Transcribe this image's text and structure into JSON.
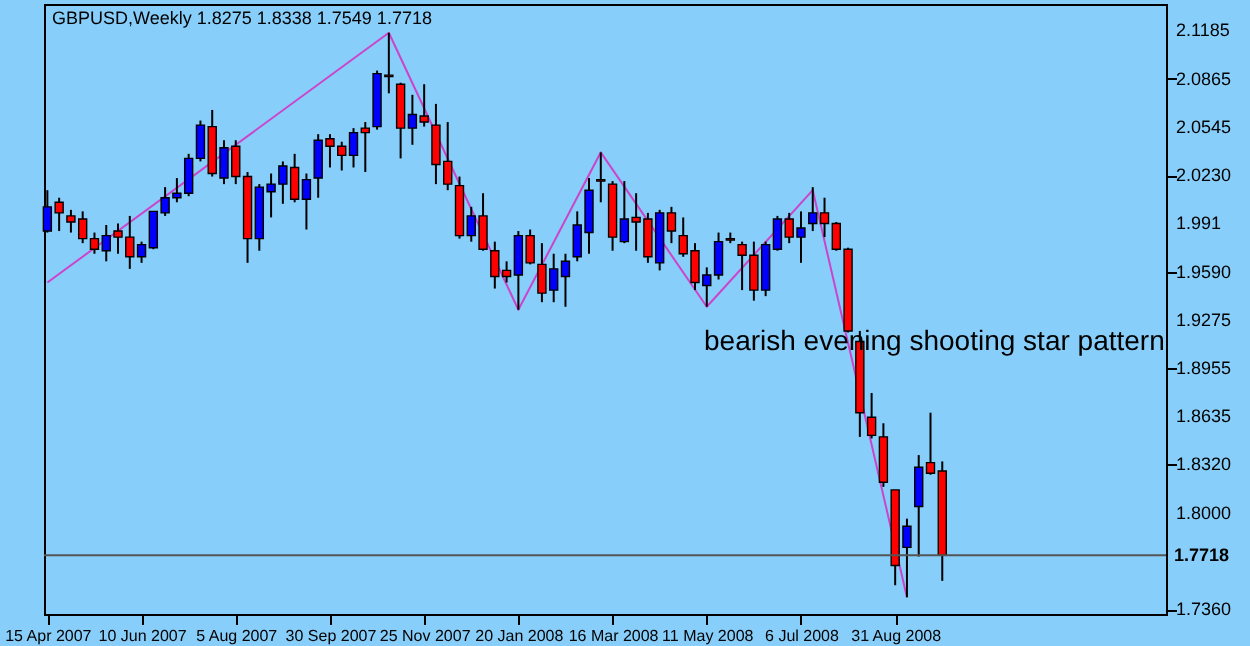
{
  "chart_data": {
    "type": "candlestick",
    "title": "GBPUSD,Weekly  1.8275 1.8338 1.7549 1.7718",
    "annotations": [
      "bearish evening shooting star pattern"
    ],
    "x": [
      "2007-04-15",
      "2007-04-22",
      "2007-04-29",
      "2007-05-06",
      "2007-05-13",
      "2007-05-20",
      "2007-05-27",
      "2007-06-03",
      "2007-06-10",
      "2007-06-17",
      "2007-06-24",
      "2007-07-01",
      "2007-07-08",
      "2007-07-15",
      "2007-07-22",
      "2007-07-29",
      "2007-08-05",
      "2007-08-12",
      "2007-08-19",
      "2007-08-26",
      "2007-09-02",
      "2007-09-09",
      "2007-09-16",
      "2007-09-23",
      "2007-09-30",
      "2007-10-07",
      "2007-10-14",
      "2007-10-21",
      "2007-10-28",
      "2007-11-04",
      "2007-11-11",
      "2007-11-18",
      "2007-11-25",
      "2007-12-02",
      "2007-12-09",
      "2007-12-16",
      "2007-12-23",
      "2007-12-30",
      "2008-01-06",
      "2008-01-13",
      "2008-01-20",
      "2008-01-27",
      "2008-02-03",
      "2008-02-10",
      "2008-02-17",
      "2008-02-24",
      "2008-03-02",
      "2008-03-09",
      "2008-03-16",
      "2008-03-23",
      "2008-03-30",
      "2008-04-06",
      "2008-04-13",
      "2008-04-20",
      "2008-04-27",
      "2008-05-04",
      "2008-05-11",
      "2008-05-18",
      "2008-05-25",
      "2008-06-01",
      "2008-06-08",
      "2008-06-15",
      "2008-06-22",
      "2008-06-29",
      "2008-07-06",
      "2008-07-13",
      "2008-07-20",
      "2008-07-27",
      "2008-08-03",
      "2008-08-10",
      "2008-08-17",
      "2008-08-24",
      "2008-08-31",
      "2008-09-07",
      "2008-09-14",
      "2008-09-21",
      "2008-09-28"
    ],
    "ohlc": [
      [
        1.986,
        2.013,
        1.985,
        2.002
      ],
      [
        2.005,
        2.008,
        1.986,
        1.998
      ],
      [
        1.996,
        2.0,
        1.985,
        1.992
      ],
      [
        1.994,
        1.999,
        1.978,
        1.981
      ],
      [
        1.981,
        1.985,
        1.971,
        1.974
      ],
      [
        1.973,
        1.99,
        1.966,
        1.983
      ],
      [
        1.986,
        1.991,
        1.971,
        1.982
      ],
      [
        1.982,
        1.996,
        1.961,
        1.969
      ],
      [
        1.969,
        1.979,
        1.965,
        1.977
      ],
      [
        1.975,
        1.999,
        1.974,
        1.999
      ],
      [
        1.998,
        2.015,
        1.996,
        2.008
      ],
      [
        2.008,
        2.021,
        2.005,
        2.011
      ],
      [
        2.011,
        2.037,
        2.009,
        2.034
      ],
      [
        2.034,
        2.059,
        2.032,
        2.056
      ],
      [
        2.055,
        2.066,
        2.022,
        2.024
      ],
      [
        2.021,
        2.046,
        2.017,
        2.041
      ],
      [
        2.042,
        2.046,
        2.017,
        2.022
      ],
      [
        2.022,
        2.025,
        1.965,
        1.981
      ],
      [
        1.981,
        2.017,
        1.973,
        2.015
      ],
      [
        2.012,
        2.024,
        1.995,
        2.017
      ],
      [
        2.017,
        2.032,
        2.004,
        2.029
      ],
      [
        2.028,
        2.037,
        2.005,
        2.007
      ],
      [
        2.007,
        2.024,
        1.987,
        2.02
      ],
      [
        2.021,
        2.05,
        2.008,
        2.046
      ],
      [
        2.047,
        2.05,
        2.028,
        2.042
      ],
      [
        2.042,
        2.045,
        2.026,
        2.036
      ],
      [
        2.036,
        2.054,
        2.028,
        2.051
      ],
      [
        2.054,
        2.058,
        2.025,
        2.051
      ],
      [
        2.055,
        2.092,
        2.053,
        2.09
      ],
      [
        2.089,
        2.117,
        2.077,
        2.088
      ],
      [
        2.083,
        2.084,
        2.034,
        2.054
      ],
      [
        2.054,
        2.076,
        2.043,
        2.063
      ],
      [
        2.062,
        2.083,
        2.055,
        2.058
      ],
      [
        2.056,
        2.07,
        2.017,
        2.03
      ],
      [
        2.032,
        2.058,
        2.013,
        2.017
      ],
      [
        2.016,
        2.022,
        1.981,
        1.983
      ],
      [
        1.983,
        2.002,
        1.979,
        1.996
      ],
      [
        1.996,
        2.011,
        1.973,
        1.974
      ],
      [
        1.973,
        1.979,
        1.948,
        1.956
      ],
      [
        1.96,
        1.966,
        1.952,
        1.956
      ],
      [
        1.957,
        1.986,
        1.934,
        1.983
      ],
      [
        1.983,
        1.987,
        1.964,
        1.965
      ],
      [
        1.964,
        1.978,
        1.939,
        1.945
      ],
      [
        1.947,
        1.971,
        1.939,
        1.961
      ],
      [
        1.956,
        1.971,
        1.936,
        1.966
      ],
      [
        1.969,
        1.999,
        1.966,
        1.99
      ],
      [
        1.985,
        2.021,
        1.971,
        2.013
      ],
      [
        2.02,
        2.038,
        2.005,
        2.019
      ],
      [
        2.017,
        2.019,
        1.973,
        1.982
      ],
      [
        1.979,
        2.019,
        1.978,
        1.994
      ],
      [
        1.995,
        2.011,
        1.973,
        1.992
      ],
      [
        1.994,
        1.998,
        1.965,
        1.969
      ],
      [
        1.965,
        2.0,
        1.96,
        1.998
      ],
      [
        1.998,
        2.002,
        1.978,
        1.986
      ],
      [
        1.983,
        1.995,
        1.969,
        1.971
      ],
      [
        1.973,
        1.978,
        1.947,
        1.952
      ],
      [
        1.95,
        1.962,
        1.936,
        1.957
      ],
      [
        1.957,
        1.985,
        1.954,
        1.979
      ],
      [
        1.981,
        1.985,
        1.978,
        1.98
      ],
      [
        1.977,
        1.979,
        1.947,
        1.97
      ],
      [
        1.97,
        1.979,
        1.94,
        1.947
      ],
      [
        1.947,
        1.979,
        1.943,
        1.977
      ],
      [
        1.974,
        1.996,
        1.973,
        1.994
      ],
      [
        1.994,
        1.998,
        1.978,
        1.982
      ],
      [
        1.982,
        1.999,
        1.965,
        1.988
      ],
      [
        1.991,
        2.015,
        1.986,
        1.998
      ],
      [
        1.998,
        2.008,
        1.982,
        1.991
      ],
      [
        1.991,
        1.992,
        1.973,
        1.974
      ],
      [
        1.974,
        1.975,
        1.919,
        1.92
      ],
      [
        1.913,
        1.92,
        1.85,
        1.866
      ],
      [
        1.863,
        1.879,
        1.849,
        1.851
      ],
      [
        1.85,
        1.859,
        1.817,
        1.82
      ],
      [
        1.815,
        1.815,
        1.752,
        1.765
      ],
      [
        1.777,
        1.796,
        1.744,
        1.791
      ],
      [
        1.804,
        1.838,
        1.771,
        1.83
      ],
      [
        1.833,
        1.866,
        1.825,
        1.826
      ],
      [
        1.8275,
        1.8338,
        1.7549,
        1.7718
      ]
    ],
    "colors": [
      "#0000ff",
      "#ff0000",
      "#ff0000",
      "#ff0000",
      "#ff0000",
      "#0000ff",
      "#ff0000",
      "#ff0000",
      "#0000ff",
      "#0000ff",
      "#0000ff",
      "#0000ff",
      "#0000ff",
      "#0000ff",
      "#ff0000",
      "#0000ff",
      "#ff0000",
      "#ff0000",
      "#0000ff",
      "#0000ff",
      "#0000ff",
      "#ff0000",
      "#0000ff",
      "#0000ff",
      "#ff0000",
      "#ff0000",
      "#0000ff",
      "#ff0000",
      "#0000ff",
      "#ff0000",
      "#ff0000",
      "#0000ff",
      "#ff0000",
      "#ff0000",
      "#ff0000",
      "#ff0000",
      "#0000ff",
      "#ff0000",
      "#ff0000",
      "#ff0000",
      "#0000ff",
      "#ff0000",
      "#ff0000",
      "#0000ff",
      "#0000ff",
      "#0000ff",
      "#0000ff",
      "#ff0000",
      "#ff0000",
      "#0000ff",
      "#ff0000",
      "#ff0000",
      "#0000ff",
      "#ff0000",
      "#ff0000",
      "#ff0000",
      "#0000ff",
      "#0000ff",
      "#ff0000",
      "#ff0000",
      "#ff0000",
      "#0000ff",
      "#0000ff",
      "#ff0000",
      "#0000ff",
      "#0000ff",
      "#ff0000",
      "#ff0000",
      "#ff0000",
      "#ff0000",
      "#ff0000",
      "#ff0000",
      "#ff0000",
      "#0000ff",
      "#0000ff",
      "#ff0000",
      "#ff0000"
    ],
    "series": [
      {
        "type": "line",
        "color": "#cc44cc",
        "x": [
          "2007-04-15",
          "2007-11-04",
          "2008-01-20",
          "2008-03-09",
          "2008-05-11",
          "2008-07-13",
          "2008-09-07"
        ],
        "values": [
          1.952,
          2.117,
          1.934,
          2.038,
          1.936,
          2.013,
          1.744
        ]
      }
    ],
    "xlim": [
      "2007-04-13",
      "2009-02-08"
    ],
    "xticks": [
      {
        "value": "2007-04-15",
        "label": "15 Apr 2007"
      },
      {
        "value": "2007-06-10",
        "label": "10 Jun 2007"
      },
      {
        "value": "2007-08-05",
        "label": "5 Aug 2007"
      },
      {
        "value": "2007-09-30",
        "label": "30 Sep 2007"
      },
      {
        "value": "2007-11-25",
        "label": "25 Nov 2007"
      },
      {
        "value": "2008-01-20",
        "label": "20 Jan 2008"
      },
      {
        "value": "2008-03-16",
        "label": "16 Mar 2008"
      },
      {
        "value": "2008-05-11",
        "label": "11 May 2008"
      },
      {
        "value": "2008-07-06",
        "label": "6 Jul 2008"
      },
      {
        "value": "2008-08-31",
        "label": "31 Aug 2008"
      }
    ],
    "ylim": [
      1.733,
      2.136
    ],
    "yticks": [
      2.1185,
      2.0865,
      2.0545,
      {
        "value": 2.023,
        "label": "2.0230"
      },
      1.991,
      {
        "value": 1.959,
        "label": "1.9590"
      },
      1.9275,
      1.8955,
      1.8635,
      {
        "value": 1.832,
        "label": "1.8320"
      },
      {
        "value": 1.8,
        "label": "1.8000"
      },
      {
        "value": 1.736,
        "label": "1.7360"
      }
    ],
    "ref_lines": [
      {
        "axis": "y",
        "value": 1.7718,
        "label": "1.7718",
        "color": "#555555"
      }
    ]
  }
}
